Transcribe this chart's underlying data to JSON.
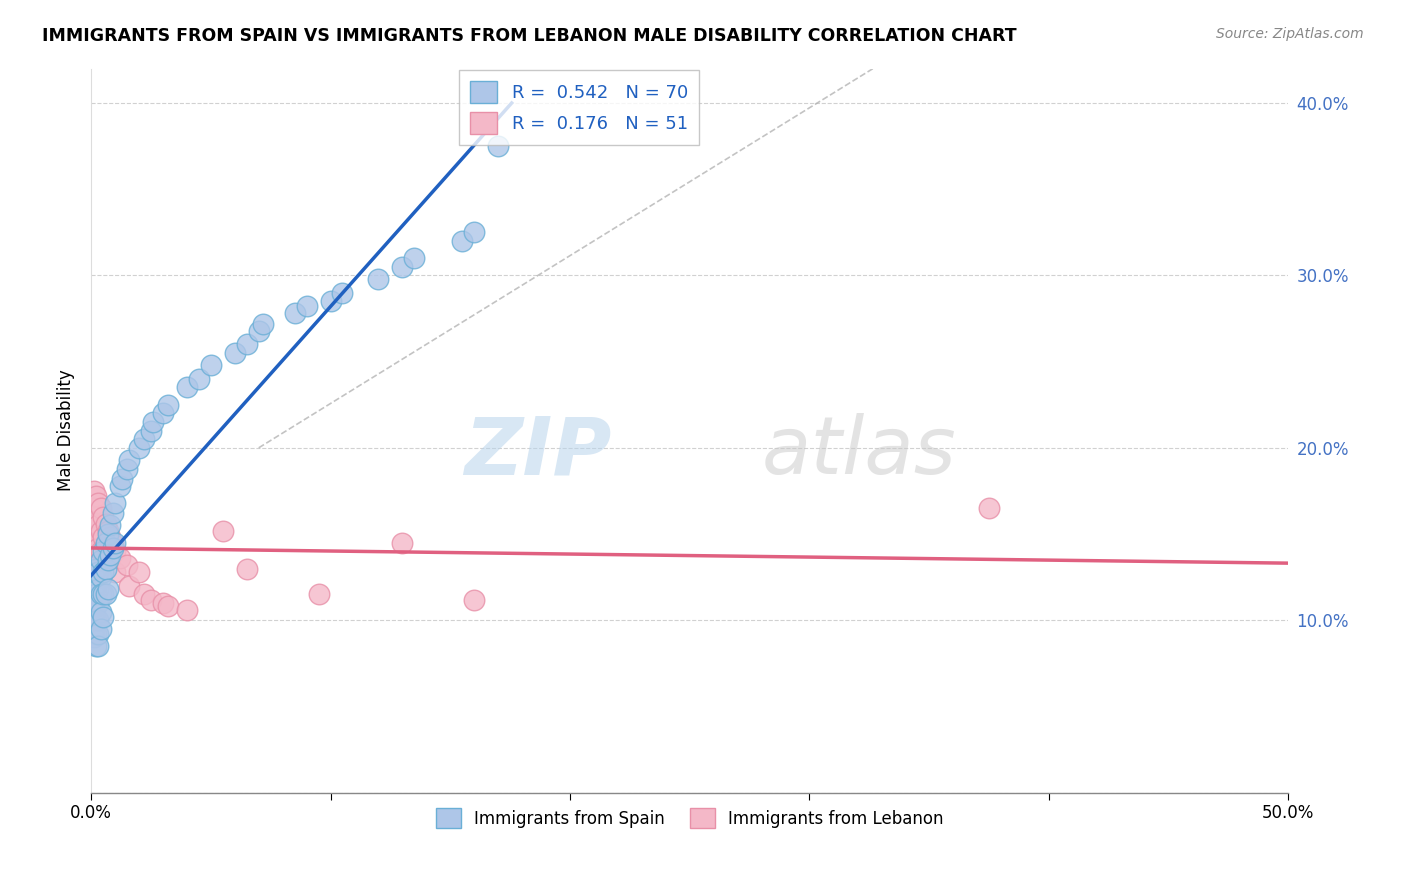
{
  "title": "IMMIGRANTS FROM SPAIN VS IMMIGRANTS FROM LEBANON MALE DISABILITY CORRELATION CHART",
  "source": "Source: ZipAtlas.com",
  "ylabel": "Male Disability",
  "xlim": [
    0.0,
    0.5
  ],
  "ylim": [
    0.0,
    0.42
  ],
  "legend_labels": [
    "Immigrants from Spain",
    "Immigrants from Lebanon"
  ],
  "spain_color": "#aec6e8",
  "lebanon_color": "#f4b8c8",
  "spain_edge": "#6aafd6",
  "lebanon_edge": "#e890a8",
  "spain_line_color": "#2060c0",
  "lebanon_line_color": "#e06080",
  "R_spain": 0.542,
  "N_spain": 70,
  "R_lebanon": 0.176,
  "N_lebanon": 51,
  "spain_scatter_x": [
    0.001,
    0.001,
    0.001,
    0.001,
    0.001,
    0.001,
    0.001,
    0.001,
    0.002,
    0.002,
    0.002,
    0.002,
    0.002,
    0.002,
    0.002,
    0.003,
    0.003,
    0.003,
    0.003,
    0.003,
    0.003,
    0.004,
    0.004,
    0.004,
    0.004,
    0.004,
    0.005,
    0.005,
    0.005,
    0.005,
    0.006,
    0.006,
    0.006,
    0.007,
    0.007,
    0.007,
    0.008,
    0.008,
    0.009,
    0.009,
    0.01,
    0.01,
    0.012,
    0.013,
    0.015,
    0.016,
    0.02,
    0.022,
    0.025,
    0.026,
    0.03,
    0.032,
    0.04,
    0.045,
    0.05,
    0.06,
    0.065,
    0.07,
    0.072,
    0.085,
    0.09,
    0.1,
    0.105,
    0.12,
    0.13,
    0.135,
    0.155,
    0.16,
    0.17
  ],
  "spain_scatter_y": [
    0.125,
    0.12,
    0.115,
    0.11,
    0.105,
    0.1,
    0.095,
    0.09,
    0.13,
    0.12,
    0.115,
    0.108,
    0.1,
    0.092,
    0.085,
    0.128,
    0.118,
    0.11,
    0.1,
    0.092,
    0.085,
    0.135,
    0.125,
    0.115,
    0.105,
    0.095,
    0.14,
    0.128,
    0.115,
    0.102,
    0.145,
    0.13,
    0.115,
    0.15,
    0.135,
    0.118,
    0.155,
    0.138,
    0.162,
    0.142,
    0.168,
    0.145,
    0.178,
    0.182,
    0.188,
    0.193,
    0.2,
    0.205,
    0.21,
    0.215,
    0.22,
    0.225,
    0.235,
    0.24,
    0.248,
    0.255,
    0.26,
    0.268,
    0.272,
    0.278,
    0.282,
    0.285,
    0.29,
    0.298,
    0.305,
    0.31,
    0.32,
    0.325,
    0.375
  ],
  "lebanon_scatter_x": [
    0.001,
    0.001,
    0.001,
    0.001,
    0.001,
    0.002,
    0.002,
    0.002,
    0.002,
    0.003,
    0.003,
    0.003,
    0.004,
    0.004,
    0.004,
    0.005,
    0.005,
    0.006,
    0.006,
    0.007,
    0.007,
    0.008,
    0.008,
    0.009,
    0.01,
    0.01,
    0.012,
    0.015,
    0.016,
    0.02,
    0.022,
    0.025,
    0.03,
    0.032,
    0.04,
    0.055,
    0.065,
    0.095,
    0.13,
    0.16,
    0.375
  ],
  "lebanon_scatter_y": [
    0.175,
    0.165,
    0.155,
    0.145,
    0.135,
    0.172,
    0.16,
    0.148,
    0.138,
    0.168,
    0.155,
    0.142,
    0.165,
    0.152,
    0.14,
    0.16,
    0.148,
    0.156,
    0.144,
    0.152,
    0.14,
    0.148,
    0.136,
    0.144,
    0.14,
    0.128,
    0.136,
    0.132,
    0.12,
    0.128,
    0.115,
    0.112,
    0.11,
    0.108,
    0.106,
    0.152,
    0.13,
    0.115,
    0.145,
    0.112,
    0.165
  ],
  "watermark_zip": "ZIP",
  "watermark_atlas": "atlas",
  "background_color": "#ffffff"
}
